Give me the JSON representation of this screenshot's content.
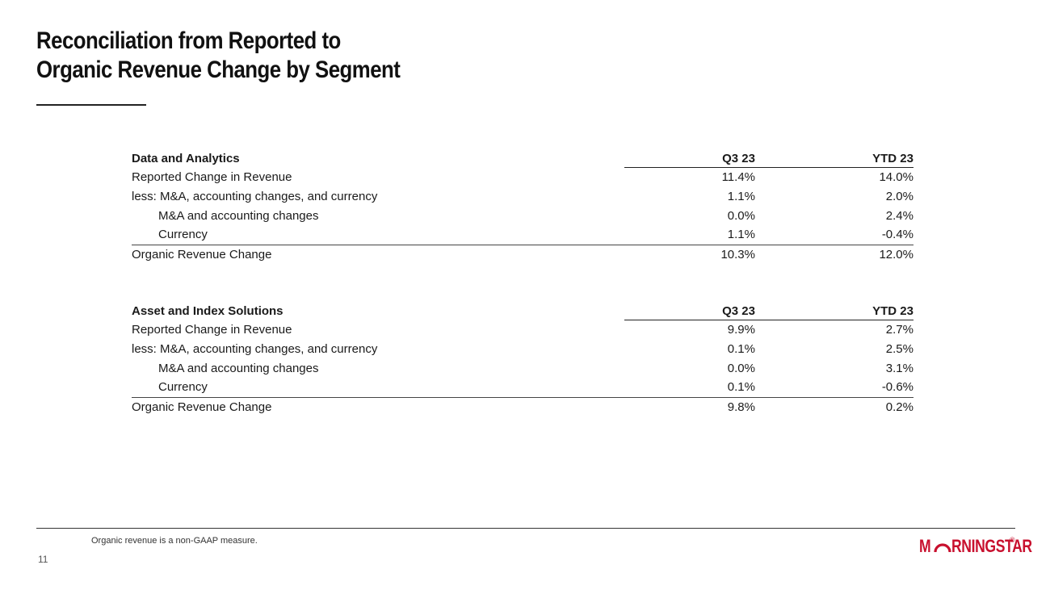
{
  "title": {
    "line1": "Reconciliation from Reported to",
    "line2": "Organic Revenue Change by Segment"
  },
  "tables": [
    {
      "segment": "Data and Analytics",
      "col_q3": "Q3 23",
      "col_ytd": "YTD 23",
      "rows": [
        {
          "label": "Reported Change in Revenue",
          "q3": "11.4%",
          "ytd": "14.0%"
        },
        {
          "label": "less: M&A, accounting changes, and currency",
          "q3": "1.1%",
          "ytd": "2.0%"
        },
        {
          "label": "M&A and accounting changes",
          "q3": "0.0%",
          "ytd": "2.4%"
        },
        {
          "label": "Currency",
          "q3": "1.1%",
          "ytd": "-0.4%"
        },
        {
          "label": "Organic Revenue Change",
          "q3": "10.3%",
          "ytd": "12.0%"
        }
      ]
    },
    {
      "segment": "Asset and Index Solutions",
      "col_q3": "Q3 23",
      "col_ytd": "YTD 23",
      "rows": [
        {
          "label": "Reported Change in Revenue",
          "q3": "9.9%",
          "ytd": "2.7%"
        },
        {
          "label": "less: M&A, accounting changes, and currency",
          "q3": "0.1%",
          "ytd": "2.5%"
        },
        {
          "label": "M&A and accounting changes",
          "q3": "0.0%",
          "ytd": "3.1%"
        },
        {
          "label": "Currency",
          "q3": "0.1%",
          "ytd": "-0.6%"
        },
        {
          "label": "Organic Revenue Change",
          "q3": "9.8%",
          "ytd": "0.2%"
        }
      ]
    }
  ],
  "footnote": "Organic revenue is a non-GAAP measure.",
  "page_number": "11",
  "logo": {
    "text_start": "M",
    "text_end": "RNINGSTAR",
    "registered_mark": "®",
    "color": "#c8102e"
  }
}
